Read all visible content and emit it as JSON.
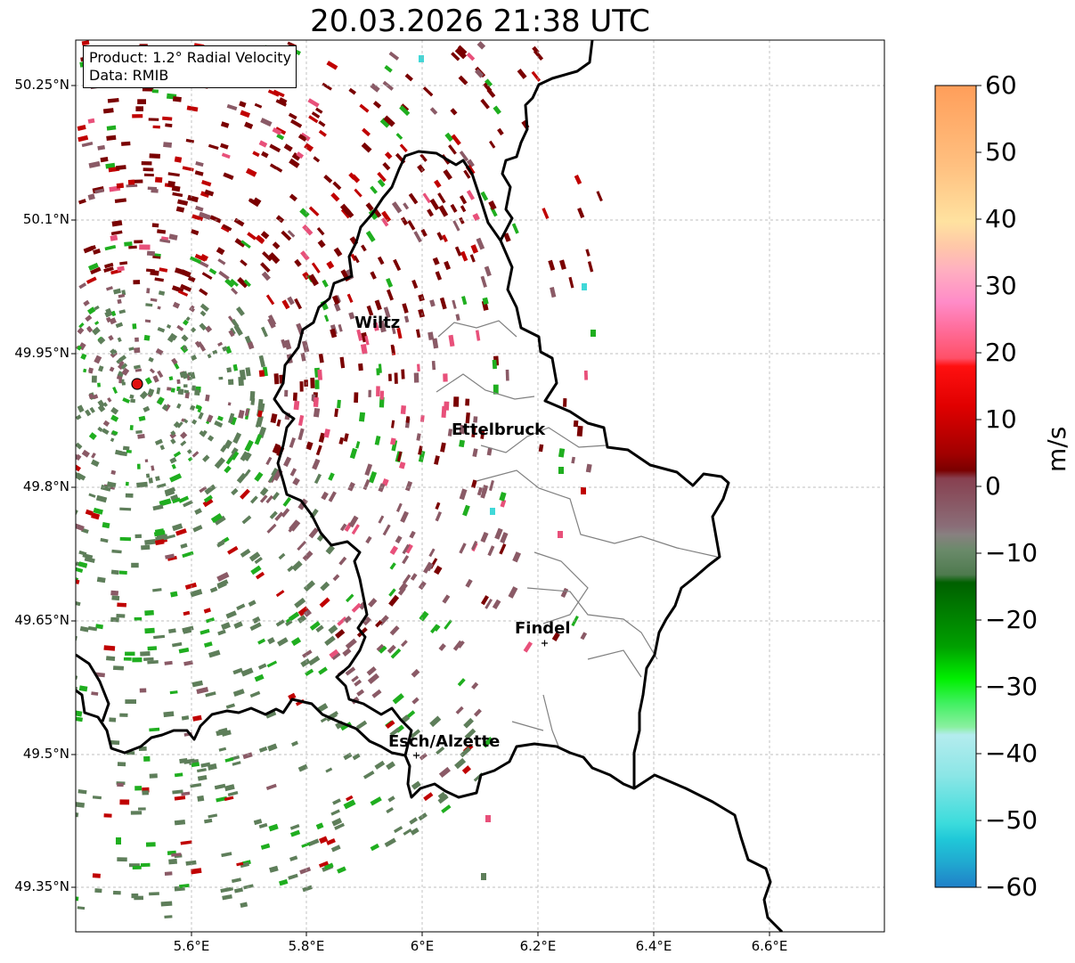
{
  "title": "20.03.2026 21:38 UTC",
  "info": {
    "product": "Product: 1.2° Radial Velocity",
    "data": "Data: RMIB"
  },
  "axes": {
    "lat_ticks": [
      "50.25°N",
      "50.1°N",
      "49.95°N",
      "49.8°N",
      "49.65°N",
      "49.5°N",
      "49.35°N"
    ],
    "lon_ticks": [
      "5.6°E",
      "5.8°E",
      "6°E",
      "6.2°E",
      "6.4°E",
      "6.6°E"
    ]
  },
  "colorbar": {
    "ticks": [
      "60",
      "50",
      "40",
      "30",
      "20",
      "10",
      "0",
      "−10",
      "−20",
      "−30",
      "−40",
      "−50",
      "−60"
    ],
    "unit": "m/s",
    "min": -60,
    "max": 60
  },
  "cities": [
    {
      "name": "Wiltz",
      "lon": 5.93,
      "lat": 49.97
    },
    {
      "name": "Ettelbruck",
      "lon": 6.1,
      "lat": 49.85
    },
    {
      "name": "Findel",
      "lon": 6.21,
      "lat": 49.63
    },
    {
      "name": "Esch/Alzette",
      "lon": 5.99,
      "lat": 49.5
    }
  ],
  "radar": {
    "lon": 5.505,
    "lat": 49.915
  },
  "colors": {
    "dark_red": "#7a0000",
    "red": "#c00000",
    "mauve": "#8a5a66",
    "gray_green": "#5e7e5a",
    "green": "#1fae1f",
    "pink": "#e8507a",
    "cyan": "#40d8d8"
  }
}
